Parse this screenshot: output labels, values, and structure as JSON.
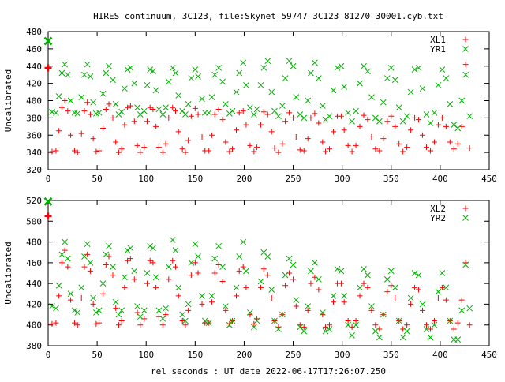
{
  "title": "HIRES continuum, 3C123, file:Skynet_59747_3C123_81270_30001.cyb.txt",
  "xlabel": "rel seconds : UT date 2022-06-17T17:26:07.250",
  "colors": {
    "xl": "#ff0000",
    "yr": "#00b000"
  },
  "chart_data": [
    {
      "type": "scatter",
      "ylabel": "Uncalibrated",
      "xlim": [
        0,
        450
      ],
      "ylim": [
        320,
        480
      ],
      "xticks": [
        0,
        50,
        100,
        150,
        200,
        250,
        300,
        350,
        400,
        450
      ],
      "yticks": [
        320,
        340,
        360,
        380,
        400,
        420,
        440,
        460,
        480
      ],
      "legend_position": "top-right",
      "series": [
        {
          "name": "XL1",
          "marker": "plus",
          "color": "#ff0000",
          "x": [
            0,
            4,
            8,
            11,
            14,
            17,
            20,
            23,
            27,
            30,
            34,
            37,
            40,
            43,
            46,
            49,
            52,
            56,
            59,
            62,
            66,
            69,
            72,
            75,
            78,
            81,
            84,
            88,
            91,
            94,
            98,
            101,
            104,
            107,
            110,
            113,
            117,
            120,
            123,
            127,
            130,
            133,
            137,
            140,
            143,
            146,
            150,
            153,
            157,
            160,
            164,
            167,
            170,
            174,
            178,
            181,
            185,
            188,
            192,
            195,
            199,
            202,
            206,
            210,
            213,
            217,
            220,
            224,
            228,
            231,
            235,
            239,
            242,
            246,
            250,
            253,
            257,
            261,
            265,
            268,
            272,
            276,
            280,
            283,
            287,
            291,
            295,
            299,
            302,
            306,
            310,
            314,
            318,
            322,
            326,
            330,
            334,
            338,
            342,
            346,
            350,
            354,
            358,
            362,
            366,
            370,
            374,
            378,
            382,
            386,
            390,
            394,
            398,
            402,
            406,
            410,
            414,
            418,
            422,
            426,
            430
          ],
          "y": [
            438,
            341,
            342,
            365,
            392,
            400,
            388,
            360,
            342,
            340,
            362,
            388,
            398,
            384,
            356,
            341,
            342,
            368,
            390,
            396,
            380,
            352,
            340,
            344,
            372,
            392,
            394,
            376,
            348,
            340,
            346,
            376,
            392,
            390,
            370,
            346,
            340,
            350,
            380,
            392,
            388,
            364,
            344,
            340,
            354,
            382,
            391,
            384,
            358,
            342,
            342,
            360,
            384,
            390,
            378,
            352,
            341,
            344,
            366,
            386,
            388,
            372,
            348,
            341,
            346,
            372,
            387,
            384,
            364,
            345,
            340,
            350,
            376,
            386,
            380,
            358,
            343,
            342,
            356,
            380,
            385,
            374,
            352,
            341,
            344,
            364,
            382,
            382,
            366,
            348,
            341,
            348,
            370,
            383,
            378,
            358,
            344,
            342,
            356,
            376,
            382,
            370,
            350,
            341,
            346,
            366,
            380,
            378,
            360,
            346,
            342,
            352,
            372,
            380,
            370,
            352,
            344,
            350,
            370,
            442,
            345
          ]
        },
        {
          "name": "YR1",
          "marker": "cross",
          "color": "#00b000",
          "x": [
            0,
            4,
            8,
            11,
            14,
            17,
            20,
            23,
            27,
            30,
            34,
            37,
            40,
            43,
            46,
            49,
            52,
            56,
            59,
            62,
            66,
            69,
            72,
            75,
            78,
            81,
            84,
            88,
            91,
            94,
            98,
            101,
            104,
            107,
            110,
            113,
            117,
            120,
            123,
            127,
            130,
            133,
            137,
            140,
            143,
            146,
            150,
            153,
            157,
            160,
            164,
            167,
            170,
            174,
            178,
            181,
            185,
            188,
            192,
            195,
            199,
            202,
            206,
            210,
            213,
            217,
            220,
            224,
            228,
            231,
            235,
            239,
            242,
            246,
            250,
            253,
            257,
            261,
            265,
            268,
            272,
            276,
            280,
            283,
            287,
            291,
            295,
            299,
            302,
            306,
            310,
            314,
            318,
            322,
            326,
            330,
            334,
            338,
            342,
            346,
            350,
            354,
            358,
            362,
            366,
            370,
            374,
            378,
            382,
            386,
            390,
            394,
            398,
            402,
            406,
            410,
            414,
            418,
            422,
            426,
            430
          ],
          "y": [
            469,
            387,
            386,
            405,
            432,
            442,
            430,
            400,
            386,
            385,
            404,
            430,
            442,
            428,
            398,
            385,
            386,
            408,
            432,
            440,
            424,
            396,
            384,
            387,
            414,
            436,
            438,
            420,
            392,
            384,
            388,
            418,
            436,
            434,
            412,
            390,
            384,
            392,
            422,
            438,
            432,
            406,
            388,
            384,
            396,
            426,
            436,
            428,
            402,
            386,
            386,
            404,
            430,
            438,
            422,
            396,
            385,
            388,
            410,
            432,
            444,
            418,
            392,
            384,
            390,
            418,
            438,
            446,
            410,
            388,
            382,
            394,
            426,
            446,
            440,
            404,
            384,
            380,
            400,
            432,
            444,
            426,
            394,
            378,
            382,
            412,
            438,
            440,
            416,
            386,
            376,
            388,
            420,
            440,
            434,
            404,
            380,
            376,
            398,
            426,
            438,
            424,
            392,
            376,
            382,
            410,
            436,
            438,
            414,
            384,
            374,
            386,
            418,
            436,
            426,
            396,
            372,
            368,
            400,
            430,
            382
          ]
        }
      ]
    },
    {
      "type": "scatter",
      "ylabel": "Uncalibrated",
      "xlim": [
        0,
        450
      ],
      "ylim": [
        380,
        520
      ],
      "xticks": [
        0,
        50,
        100,
        150,
        200,
        250,
        300,
        350,
        400,
        450
      ],
      "yticks": [
        380,
        400,
        420,
        440,
        460,
        480,
        500,
        520
      ],
      "legend_position": "top-right",
      "series": [
        {
          "name": "XL2",
          "marker": "plus",
          "color": "#ff0000",
          "x": [
            0,
            4,
            8,
            11,
            14,
            17,
            20,
            23,
            27,
            30,
            34,
            37,
            40,
            43,
            46,
            49,
            52,
            56,
            59,
            62,
            66,
            69,
            72,
            75,
            78,
            81,
            84,
            88,
            91,
            94,
            98,
            101,
            104,
            107,
            110,
            113,
            117,
            120,
            123,
            127,
            130,
            133,
            137,
            140,
            143,
            146,
            150,
            153,
            157,
            160,
            164,
            167,
            170,
            174,
            178,
            181,
            185,
            188,
            192,
            195,
            199,
            202,
            206,
            210,
            213,
            217,
            220,
            224,
            228,
            231,
            235,
            239,
            242,
            246,
            250,
            253,
            257,
            261,
            265,
            268,
            272,
            276,
            280,
            283,
            287,
            291,
            295,
            299,
            302,
            306,
            310,
            314,
            318,
            322,
            326,
            330,
            334,
            338,
            342,
            346,
            350,
            354,
            358,
            362,
            366,
            370,
            374,
            378,
            382,
            386,
            390,
            394,
            398,
            402,
            406,
            410,
            414,
            418,
            422,
            426,
            430
          ],
          "y": [
            505,
            401,
            402,
            428,
            460,
            472,
            456,
            424,
            402,
            400,
            426,
            456,
            468,
            452,
            420,
            401,
            402,
            430,
            458,
            466,
            448,
            416,
            400,
            404,
            436,
            462,
            464,
            444,
            412,
            400,
            406,
            440,
            462,
            460,
            436,
            408,
            400,
            410,
            444,
            462,
            456,
            428,
            404,
            400,
            414,
            448,
            460,
            450,
            420,
            402,
            402,
            422,
            450,
            458,
            442,
            414,
            401,
            404,
            428,
            452,
            456,
            436,
            410,
            401,
            406,
            436,
            454,
            448,
            426,
            404,
            398,
            410,
            438,
            450,
            444,
            418,
            400,
            398,
            414,
            440,
            446,
            434,
            410,
            398,
            400,
            422,
            440,
            440,
            422,
            404,
            398,
            404,
            428,
            440,
            436,
            414,
            400,
            396,
            410,
            432,
            438,
            426,
            404,
            396,
            400,
            420,
            436,
            434,
            414,
            400,
            396,
            404,
            426,
            436,
            424,
            404,
            396,
            402,
            424,
            460,
            400
          ]
        },
        {
          "name": "YR2",
          "marker": "cross",
          "color": "#00b000",
          "x": [
            0,
            4,
            8,
            11,
            14,
            17,
            20,
            23,
            27,
            30,
            34,
            37,
            40,
            43,
            46,
            49,
            52,
            56,
            59,
            62,
            66,
            69,
            72,
            75,
            78,
            81,
            84,
            88,
            91,
            94,
            98,
            101,
            104,
            107,
            110,
            113,
            117,
            120,
            123,
            127,
            130,
            133,
            137,
            140,
            143,
            146,
            150,
            153,
            157,
            160,
            164,
            167,
            170,
            174,
            178,
            181,
            185,
            188,
            192,
            195,
            199,
            202,
            206,
            210,
            213,
            217,
            220,
            224,
            228,
            231,
            235,
            239,
            242,
            246,
            250,
            253,
            257,
            261,
            265,
            268,
            272,
            276,
            280,
            283,
            287,
            291,
            295,
            299,
            302,
            306,
            310,
            314,
            318,
            322,
            326,
            330,
            334,
            338,
            342,
            346,
            350,
            354,
            358,
            362,
            366,
            370,
            374,
            378,
            382,
            386,
            390,
            394,
            398,
            402,
            406,
            410,
            414,
            418,
            422,
            426,
            430
          ],
          "y": [
            519,
            418,
            416,
            438,
            468,
            480,
            464,
            430,
            414,
            412,
            436,
            466,
            478,
            460,
            426,
            412,
            414,
            440,
            468,
            476,
            456,
            422,
            410,
            414,
            446,
            472,
            474,
            452,
            418,
            408,
            414,
            450,
            476,
            474,
            446,
            414,
            406,
            416,
            456,
            482,
            472,
            436,
            410,
            404,
            420,
            460,
            478,
            466,
            428,
            404,
            402,
            428,
            464,
            476,
            456,
            418,
            400,
            404,
            436,
            466,
            480,
            452,
            412,
            398,
            404,
            442,
            470,
            466,
            434,
            404,
            396,
            410,
            448,
            464,
            458,
            424,
            398,
            394,
            418,
            452,
            460,
            444,
            412,
            394,
            396,
            428,
            454,
            452,
            428,
            400,
            390,
            400,
            436,
            454,
            448,
            418,
            394,
            388,
            410,
            444,
            452,
            436,
            404,
            388,
            394,
            426,
            450,
            448,
            420,
            396,
            388,
            400,
            432,
            450,
            436,
            404,
            386,
            386,
            414,
            458,
            416
          ]
        }
      ]
    }
  ]
}
